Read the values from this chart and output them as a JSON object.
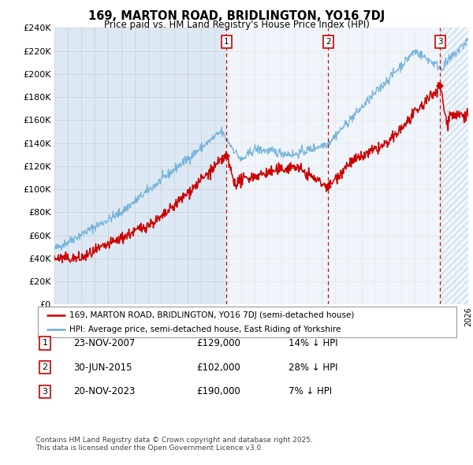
{
  "title": "169, MARTON ROAD, BRIDLINGTON, YO16 7DJ",
  "subtitle": "Price paid vs. HM Land Registry's House Price Index (HPI)",
  "hpi_label": "HPI: Average price, semi-detached house, East Riding of Yorkshire",
  "price_label": "169, MARTON ROAD, BRIDLINGTON, YO16 7DJ (semi-detached house)",
  "legend_footer": "Contains HM Land Registry data © Crown copyright and database right 2025.\nThis data is licensed under the Open Government Licence v3.0.",
  "sale_events": [
    {
      "num": 1,
      "date": "23-NOV-2007",
      "price": 129000,
      "pct": "14%",
      "direction": "↓",
      "x_year": 2007.9
    },
    {
      "num": 2,
      "date": "30-JUN-2015",
      "price": 102000,
      "pct": "28%",
      "direction": "↓",
      "x_year": 2015.5
    },
    {
      "num": 3,
      "date": "20-NOV-2023",
      "price": 190000,
      "pct": "7%",
      "direction": "↓",
      "x_year": 2023.9
    }
  ],
  "ylim": [
    0,
    240000
  ],
  "yticks": [
    0,
    20000,
    40000,
    60000,
    80000,
    100000,
    120000,
    140000,
    160000,
    180000,
    200000,
    220000,
    240000
  ],
  "hpi_color": "#6baed6",
  "price_color": "#cc0000",
  "grid_color": "#cccccc",
  "bg_color": "#dce9f5",
  "shade_color": "#d0e4f4",
  "hatch_color": "#c8ddf0",
  "vline_color": "#cc0000",
  "box_color": "#cc0000",
  "sale_marker_color": "#cc0000",
  "xmin": 1995,
  "xmax": 2026
}
